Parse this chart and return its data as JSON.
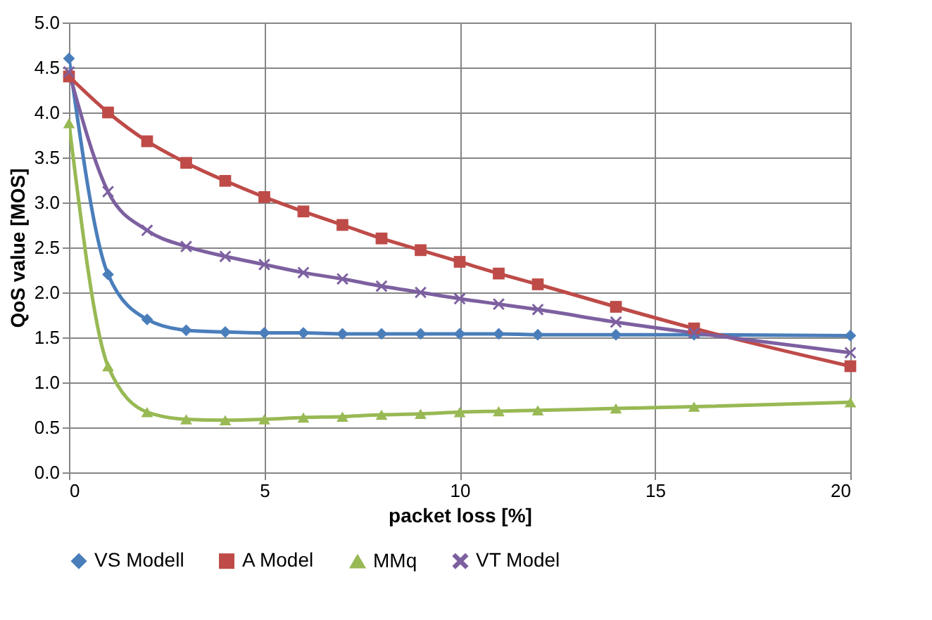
{
  "chart_data": {
    "type": "line",
    "xlabel": "packet loss [%]",
    "ylabel": "QoS value [MOS]",
    "x": [
      0,
      1,
      2,
      3,
      4,
      5,
      6,
      7,
      8,
      9,
      10,
      11,
      12,
      14,
      16,
      20
    ],
    "series": [
      {
        "name": "VS Modell",
        "color": "#4a7ebb",
        "marker": "diamond",
        "values": [
          4.6,
          2.2,
          1.7,
          1.58,
          1.56,
          1.55,
          1.55,
          1.54,
          1.54,
          1.54,
          1.54,
          1.54,
          1.53,
          1.53,
          1.53,
          1.52
        ]
      },
      {
        "name": "A Model",
        "color": "#be4b48",
        "marker": "square",
        "values": [
          4.4,
          4.0,
          3.68,
          3.44,
          3.24,
          3.06,
          2.9,
          2.75,
          2.6,
          2.47,
          2.34,
          2.21,
          2.09,
          1.84,
          1.6,
          1.18
        ]
      },
      {
        "name": "MMq",
        "color": "#98b954",
        "marker": "triangle",
        "values": [
          3.88,
          1.18,
          0.67,
          0.59,
          0.58,
          0.59,
          0.61,
          0.62,
          0.64,
          0.65,
          0.67,
          0.68,
          0.69,
          0.71,
          0.73,
          0.78
        ]
      },
      {
        "name": "VT Model",
        "color": "#7d60a0",
        "marker": "cross",
        "values": [
          4.45,
          3.12,
          2.69,
          2.51,
          2.4,
          2.31,
          2.22,
          2.15,
          2.07,
          2.0,
          1.93,
          1.87,
          1.81,
          1.67,
          1.55,
          1.33
        ]
      }
    ],
    "xlim": [
      0,
      20
    ],
    "xticks": [
      0,
      5,
      10,
      15,
      20
    ],
    "ylim": [
      0,
      5
    ],
    "yticks": [
      {
        "value": 0,
        "label": "0.0"
      },
      {
        "value": 0.5,
        "label": "0.5"
      },
      {
        "value": 1,
        "label": "1.0"
      },
      {
        "value": 1.5,
        "label": "1.5"
      },
      {
        "value": 2,
        "label": "2.0"
      },
      {
        "value": 2.5,
        "label": "2.5"
      },
      {
        "value": 3,
        "label": "3.0"
      },
      {
        "value": 3.5,
        "label": "3.5"
      },
      {
        "value": 4,
        "label": "4.0"
      },
      {
        "value": 4.5,
        "label": "4.5"
      },
      {
        "value": 5,
        "label": "5.0"
      }
    ],
    "grid": true,
    "legend": "bottom",
    "line_style": "solid"
  }
}
